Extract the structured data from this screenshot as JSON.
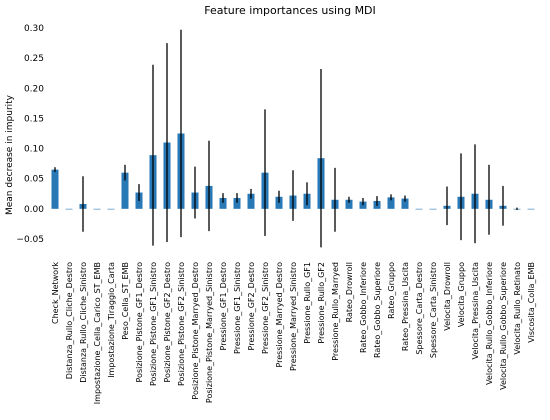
{
  "chart_data": {
    "type": "bar",
    "title": "Feature importances using MDI",
    "xlabel": "",
    "ylabel": "Mean decrease in impurity",
    "ylim": [
      -0.065,
      0.3
    ],
    "yticks": [
      -0.05,
      0.0,
      0.05,
      0.1,
      0.15,
      0.2,
      0.25,
      0.3
    ],
    "ytick_labels": [
      "−0.05",
      "0.00",
      "0.05",
      "0.10",
      "0.15",
      "0.20",
      "0.25",
      "0.30"
    ],
    "grid": false,
    "bar_color": "#2878b5",
    "errbar_color": "#000000",
    "categories": [
      "Check_Network",
      "Distanza_Rullo_Cliche_Destro",
      "Distanza_Rullo_Cliche_Sinistro",
      "Impostazione_Cella_Carico_ST_EMB",
      "Impostazione_Tiraggio_Carta",
      "Peso_Cella_ST_EMB",
      "Posizione_Pistone_GF1_Destro",
      "Posizione_Pistone_GF1_Sinistro",
      "Posizione_Pistone_GF2_Destro",
      "Posizione_Pistone_GF2_Sinistro",
      "Posizione_Pistone_Marryed_Destro",
      "Posizione_Pistone_Marryed_Sinistro",
      "Pressione_GF1_Destro",
      "Pressione_GF1_Sinistro",
      "Pressione_GF2_Destro",
      "Pressione_GF2_Sinistro",
      "Pressione_Marryed_Destro",
      "Pressione_Marryed_Sinistro",
      "Pressione_Rullo_GF1",
      "Pressione_Rullo_GF2",
      "Pressione_Rullo_Marryed",
      "Rateo_Drowroll",
      "Rateo_Gobbo_Inferiore",
      "Rateo_Gobbo_Superiore",
      "Rateo_Gruppo",
      "Rateo_Pressina_Uscita",
      "Spessore_Carta_Destro",
      "Spessore_Carta_Sinistro",
      "Velocita_Drowroll",
      "Velocita_Gruppo",
      "Velocita_Pressina_Uscita",
      "Velocita_Rullo_Gobbo_Inferiore",
      "Velocita_Rullo_Gobbo_Superiore",
      "Velocita_Rullo_Retinato",
      "Viscosita_Colla_EMB"
    ],
    "values": [
      0.065,
      0.0,
      0.008,
      0.0,
      0.0,
      0.06,
      0.027,
      0.089,
      0.11,
      0.125,
      0.027,
      0.038,
      0.018,
      0.018,
      0.025,
      0.06,
      0.02,
      0.022,
      0.025,
      0.084,
      0.015,
      0.015,
      0.012,
      0.013,
      0.019,
      0.017,
      0.0,
      0.0,
      0.005,
      0.02,
      0.025,
      0.015,
      0.005,
      0.0,
      0.0
    ],
    "errors": [
      0.004,
      0.0,
      0.046,
      0.0,
      0.0,
      0.013,
      0.014,
      0.15,
      0.165,
      0.172,
      0.043,
      0.075,
      0.008,
      0.008,
      0.008,
      0.105,
      0.01,
      0.042,
      0.019,
      0.148,
      0.053,
      0.005,
      0.006,
      0.008,
      0.005,
      0.005,
      0.0,
      0.0,
      0.032,
      0.072,
      0.082,
      0.058,
      0.033,
      0.002,
      0.0
    ]
  }
}
